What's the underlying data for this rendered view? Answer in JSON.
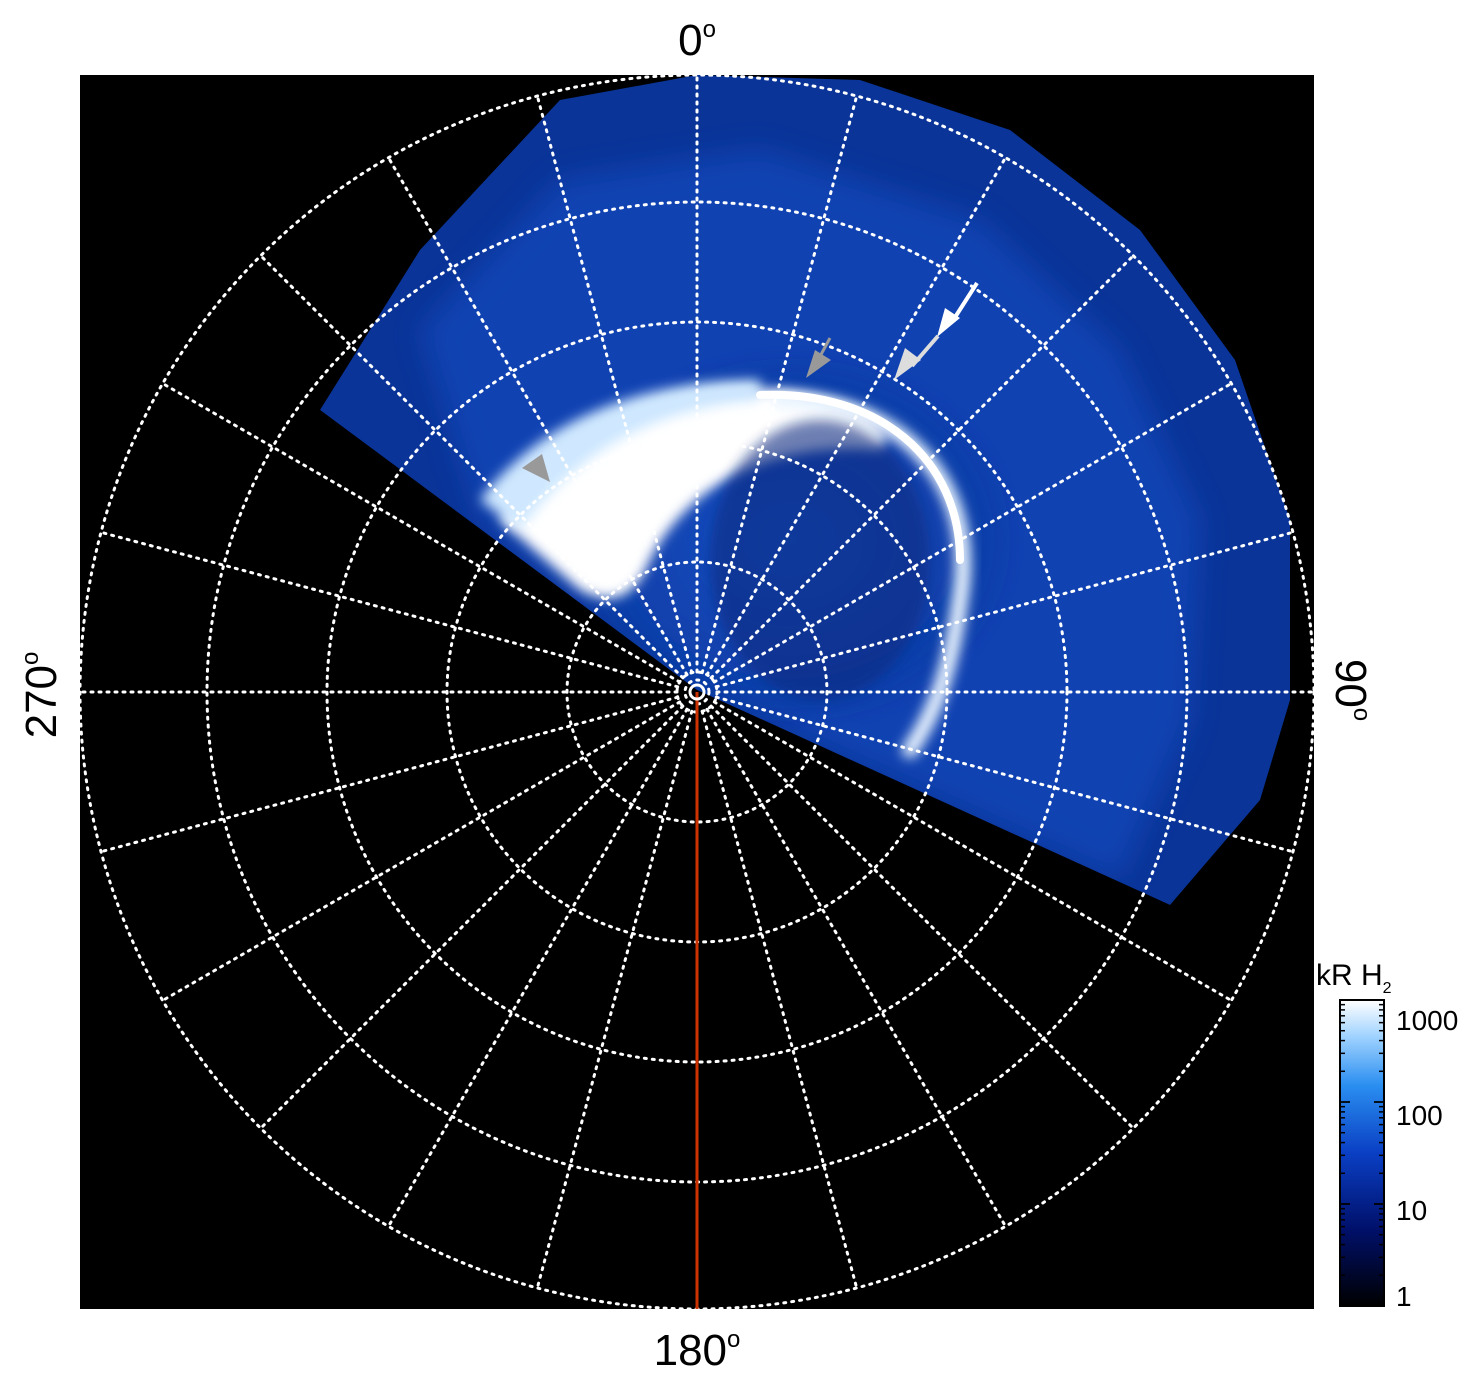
{
  "longitude_labels": {
    "top": "0",
    "bottom": "180",
    "left": "270",
    "right": "90",
    "degree_symbol": "o"
  },
  "colorbar": {
    "title_main": "kR H",
    "title_subscript": "2",
    "ticks": [
      "1000",
      "100",
      "10",
      "1"
    ],
    "colors": [
      "#000000",
      "#00106a",
      "#0a3fc4",
      "#2a8ef0",
      "#9fd2ff",
      "#ffffff"
    ]
  },
  "colors": {
    "background": "#000000",
    "grid": "#ffffff",
    "central_meridian_line": "#cc3300",
    "arrow_white": "#ffffff",
    "arrow_grey": "#999999"
  },
  "annotations": {
    "white_arrow_count": 2,
    "grey_arrow_count": 3
  }
}
